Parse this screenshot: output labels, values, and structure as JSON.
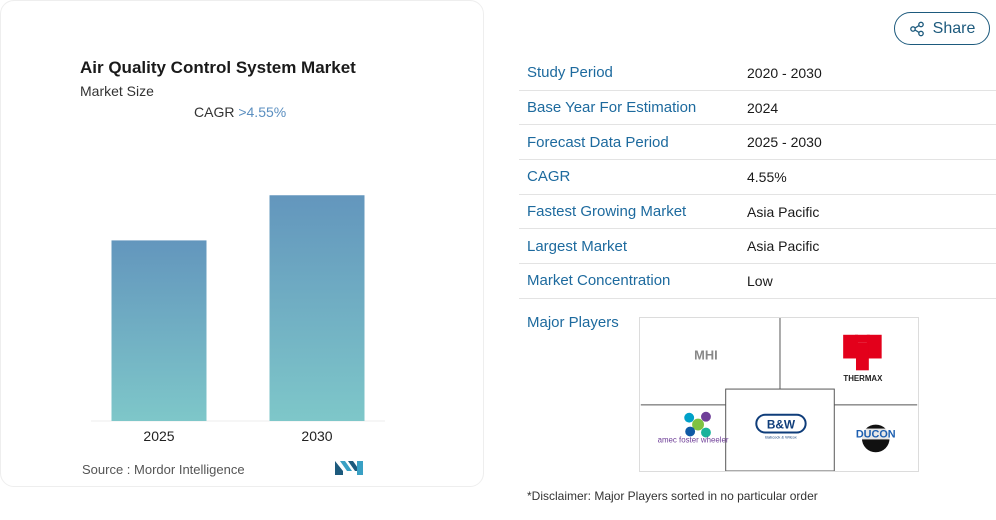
{
  "card": {
    "title": "Air Quality Control System Market",
    "subtitle": "Market Size",
    "cagr_label": "CAGR",
    "cagr_value": ">4.55%",
    "source_label": "Source :",
    "source_value": "Mordor Intelligence"
  },
  "chart_data": {
    "type": "bar",
    "categories": [
      "2025",
      "2030"
    ],
    "values": [
      1.0,
      1.25
    ],
    "title": "",
    "xlabel": "",
    "ylabel": "",
    "ylim": [
      0,
      1.34
    ],
    "grid": false,
    "bar_gradient": [
      "#6396bd",
      "#7ec7c9"
    ]
  },
  "share": {
    "label": "Share"
  },
  "info": {
    "rows": [
      {
        "label": "Study Period",
        "value": "2020 - 2030"
      },
      {
        "label": "Base Year For Estimation",
        "value": "2024"
      },
      {
        "label": "Forecast Data Period",
        "value": "2025 - 2030"
      },
      {
        "label": "CAGR",
        "value": "4.55%"
      },
      {
        "label": "Fastest Growing Market",
        "value": "Asia Pacific"
      },
      {
        "label": "Largest Market",
        "value": "Asia Pacific"
      },
      {
        "label": "Market Concentration",
        "value": "Low"
      }
    ],
    "players_label": "Major Players",
    "players": [
      {
        "name": "MHI",
        "logo_text": "MHI"
      },
      {
        "name": "Thermax",
        "logo_text": "THERMAX"
      },
      {
        "name": "Amec Foster Wheeler",
        "logo_text": "amec foster wheeler"
      },
      {
        "name": "Babcock & Wilcox",
        "logo_text": "B&W BABCOCK & WILCOX"
      },
      {
        "name": "Ducon",
        "logo_text": "DUCON"
      }
    ],
    "disclaimer": "*Disclaimer: Major Players sorted in no particular order"
  }
}
